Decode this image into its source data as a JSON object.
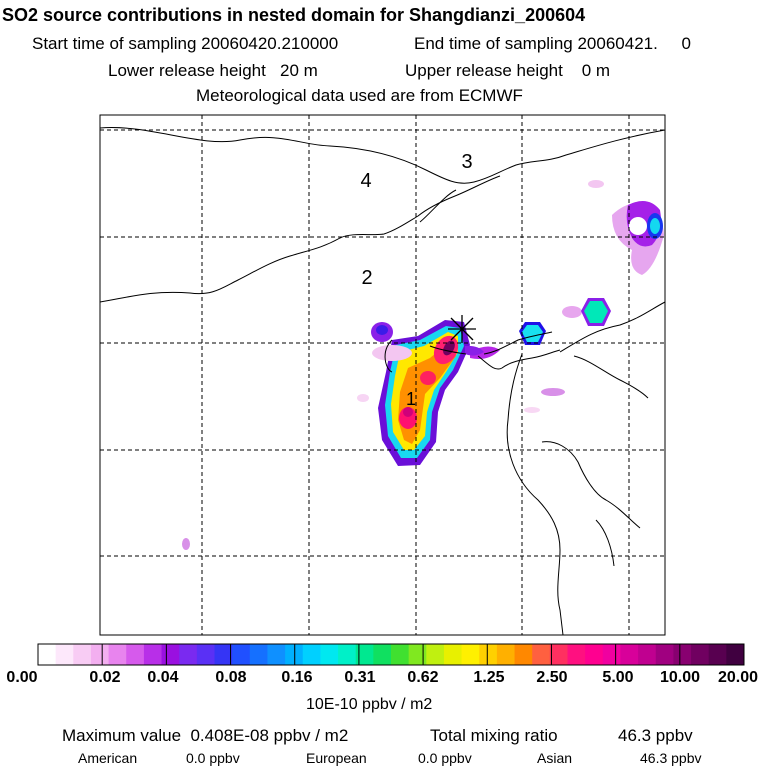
{
  "header": {
    "title": "SO2 source contributions in nested domain for Shangdianzi_200604",
    "start_label": "Start time of sampling 20060420.210000",
    "end_label": "End time of sampling 20060421.     0",
    "lower_label": "Lower release height   20 m",
    "upper_label": "Upper release height    0 m",
    "met_label": "Meteorological data used are from ECMWF"
  },
  "map": {
    "region_labels": [
      "4",
      "3",
      "2",
      "1"
    ],
    "station_marker": "star-cross-icon"
  },
  "colorbar": {
    "colors": [
      "#ffffff",
      "#fde8fb",
      "#f8ccf4",
      "#f3aff0",
      "#e884ee",
      "#d65aec",
      "#b82fe8",
      "#9a10e0",
      "#7a2af0",
      "#5a30f5",
      "#3535f5",
      "#2050ff",
      "#1570ff",
      "#0f90ff",
      "#00b0ff",
      "#00d0ff",
      "#00e8f0",
      "#00f0c8",
      "#00e890",
      "#10e060",
      "#40e030",
      "#80e820",
      "#c0f010",
      "#e8f000",
      "#fff000",
      "#ffd000",
      "#ffb000",
      "#ff8800",
      "#ff6040",
      "#ff3060",
      "#ff1080",
      "#ff0090",
      "#f000a0",
      "#d8009a",
      "#c00090",
      "#a00080",
      "#880070",
      "#700060",
      "#580050",
      "#400040"
    ],
    "tick_labels": [
      "0.00",
      "0.02",
      "0.04",
      "0.08",
      "0.16",
      "0.31",
      "0.62",
      "1.25",
      "2.50",
      "5.00",
      "10.00",
      "20.00"
    ],
    "unit_label": "10E-10 ppbv / m2"
  },
  "stats": {
    "max_label": "Maximum value  0.408E-08 ppbv / m2",
    "total_label": "Total mixing ratio",
    "total_value": "46.3 ppbv",
    "american_label": "American",
    "american_value": "0.0 ppbv",
    "european_label": "European",
    "european_value": "0.0 ppbv",
    "asian_label": "Asian",
    "asian_value": "46.3 ppbv"
  }
}
